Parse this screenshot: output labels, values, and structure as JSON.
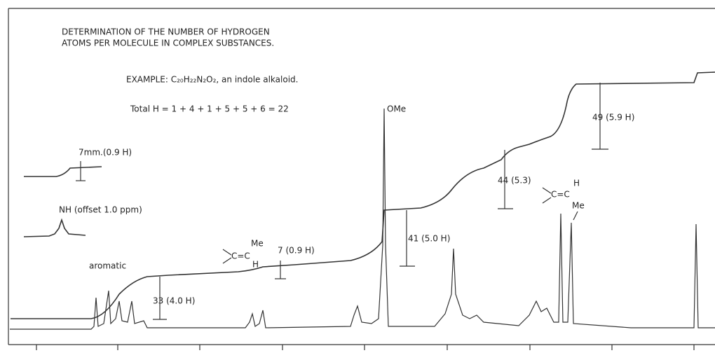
{
  "title": [
    "DETERMINATION OF THE NUMBER OF HYDROGEN",
    "ATOMS PER MOLECULE IN COMPLEX SUBSTANCES."
  ],
  "example": "EXAMPLE: C₂₀H₂₂N₂O₂, an indole alkaloid.",
  "total": "Total H = 1 + 4 + 1 + 5 + 5 + 6 = 22",
  "annotations": {
    "ome": "OMe",
    "inset_step": "7mm.(0.9 H)",
    "nh": "NH (offset 1.0 ppm)",
    "aromatic": "aromatic",
    "step_33": "33 (4.0 H)",
    "step_7": "7 (0.9 H)",
    "step_41": "41 (5.0 H)",
    "step_44": "44 (5.3)",
    "step_49": "49 (5.9 H)"
  },
  "structures": [
    {
      "bond": "C=C",
      "upper": "Me",
      "lower": "H"
    },
    {
      "bond": "C=C",
      "upper": "H",
      "lower": "Me"
    }
  ]
}
